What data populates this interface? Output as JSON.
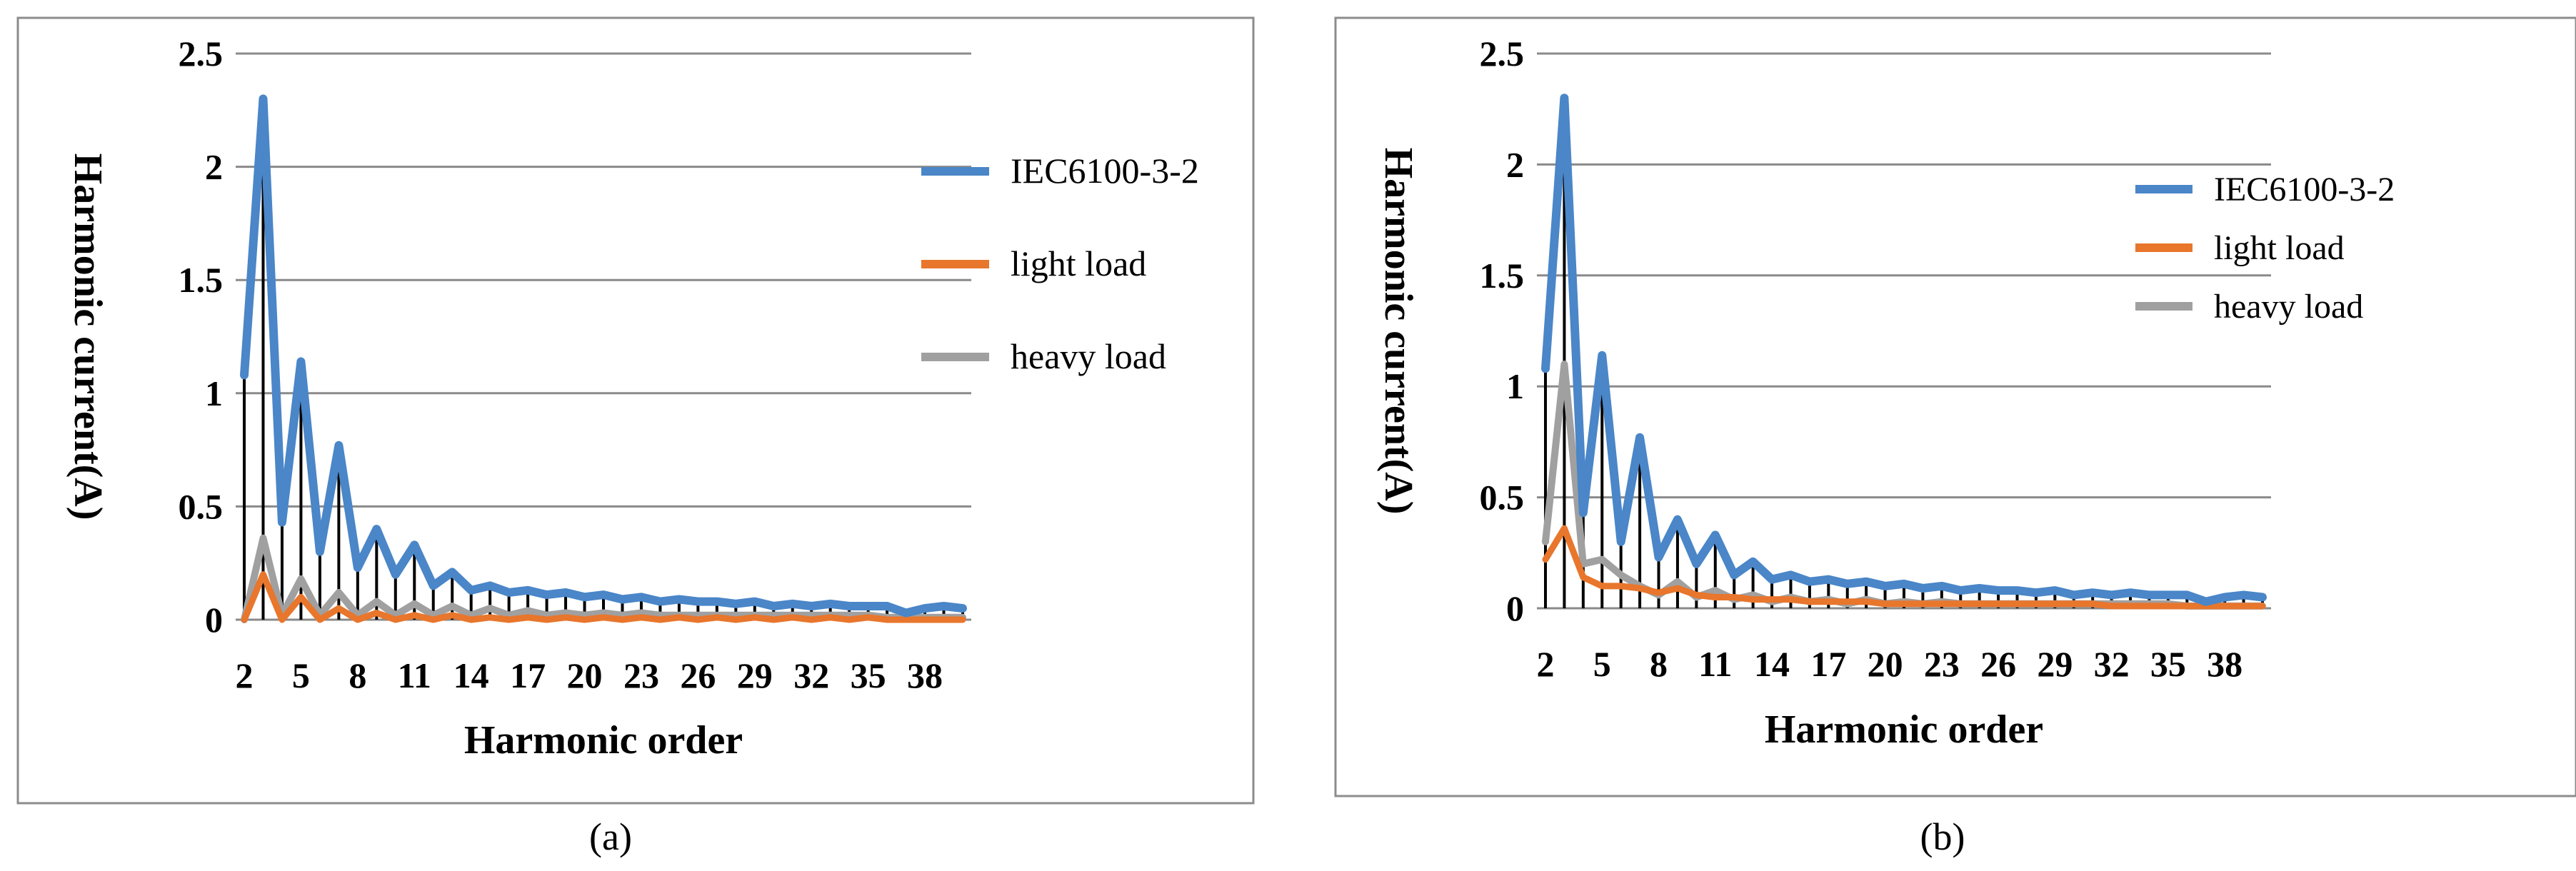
{
  "figure": {
    "panels": [
      {
        "caption": "(a)"
      },
      {
        "caption": "(b)"
      }
    ]
  },
  "chart_data": [
    {
      "type": "line",
      "panel": "a",
      "caption": "(a)",
      "title": "",
      "xlabel": "Harmonic order",
      "ylabel": "Harmonic current(A)",
      "ylim": [
        0,
        2.5
      ],
      "yticks": [
        "0",
        "0.5",
        "1",
        "1.5",
        "2",
        "2.5"
      ],
      "xticks": [
        "2",
        "5",
        "8",
        "11",
        "14",
        "17",
        "20",
        "23",
        "26",
        "29",
        "32",
        "35",
        "38"
      ],
      "x": [
        2,
        3,
        4,
        5,
        6,
        7,
        8,
        9,
        10,
        11,
        12,
        13,
        14,
        15,
        16,
        17,
        18,
        19,
        20,
        21,
        22,
        23,
        24,
        25,
        26,
        27,
        28,
        29,
        30,
        31,
        32,
        33,
        34,
        35,
        36,
        37,
        38,
        39,
        40
      ],
      "grid": true,
      "legend": "right",
      "series": [
        {
          "name": "IEC6100-3-2",
          "color": "#4a86c8",
          "values": [
            1.08,
            2.3,
            0.43,
            1.14,
            0.3,
            0.77,
            0.23,
            0.4,
            0.2,
            0.33,
            0.15,
            0.21,
            0.13,
            0.15,
            0.12,
            0.13,
            0.11,
            0.12,
            0.1,
            0.11,
            0.09,
            0.1,
            0.08,
            0.09,
            0.08,
            0.08,
            0.07,
            0.08,
            0.06,
            0.07,
            0.06,
            0.07,
            0.06,
            0.06,
            0.06,
            0.03,
            0.05,
            0.06,
            0.05
          ]
        },
        {
          "name": "light load",
          "color": "#e8762c",
          "values": [
            0.0,
            0.2,
            0.0,
            0.1,
            0.0,
            0.05,
            0.0,
            0.03,
            0.0,
            0.02,
            0.0,
            0.02,
            0.0,
            0.01,
            0.0,
            0.01,
            0.0,
            0.01,
            0.0,
            0.01,
            0.0,
            0.01,
            0.0,
            0.01,
            0.0,
            0.01,
            0.0,
            0.01,
            0.0,
            0.01,
            0.0,
            0.01,
            0.0,
            0.01,
            0.0,
            0.0,
            0.0,
            0.0,
            0.0
          ]
        },
        {
          "name": "heavy load",
          "color": "#a0a0a0",
          "values": [
            0.0,
            0.36,
            0.02,
            0.18,
            0.02,
            0.12,
            0.02,
            0.08,
            0.02,
            0.07,
            0.02,
            0.06,
            0.02,
            0.05,
            0.02,
            0.04,
            0.02,
            0.03,
            0.02,
            0.03,
            0.02,
            0.03,
            0.02,
            0.02,
            0.02,
            0.02,
            0.02,
            0.02,
            0.02,
            0.02,
            0.02,
            0.02,
            0.02,
            0.02,
            0.01,
            0.01,
            0.01,
            0.01,
            0.01
          ]
        }
      ]
    },
    {
      "type": "line",
      "panel": "b",
      "caption": "(b)",
      "title": "",
      "xlabel": "Harmonic order",
      "ylabel": "Harmonic current(A)",
      "ylim": [
        0,
        2.5
      ],
      "yticks": [
        "0",
        "0.5",
        "1",
        "1.5",
        "2",
        "2.5"
      ],
      "xticks": [
        "2",
        "5",
        "8",
        "11",
        "14",
        "17",
        "20",
        "23",
        "26",
        "29",
        "32",
        "35",
        "38"
      ],
      "x": [
        2,
        3,
        4,
        5,
        6,
        7,
        8,
        9,
        10,
        11,
        12,
        13,
        14,
        15,
        16,
        17,
        18,
        19,
        20,
        21,
        22,
        23,
        24,
        25,
        26,
        27,
        28,
        29,
        30,
        31,
        32,
        33,
        34,
        35,
        36,
        37,
        38,
        39,
        40
      ],
      "grid": true,
      "legend": "right",
      "series": [
        {
          "name": "IEC6100-3-2",
          "color": "#4a86c8",
          "values": [
            1.08,
            2.3,
            0.43,
            1.14,
            0.3,
            0.77,
            0.23,
            0.4,
            0.2,
            0.33,
            0.15,
            0.21,
            0.13,
            0.15,
            0.12,
            0.13,
            0.11,
            0.12,
            0.1,
            0.11,
            0.09,
            0.1,
            0.08,
            0.09,
            0.08,
            0.08,
            0.07,
            0.08,
            0.06,
            0.07,
            0.06,
            0.07,
            0.06,
            0.06,
            0.06,
            0.03,
            0.05,
            0.06,
            0.05
          ]
        },
        {
          "name": "light load",
          "color": "#e8762c",
          "values": [
            0.22,
            0.36,
            0.14,
            0.1,
            0.1,
            0.09,
            0.07,
            0.09,
            0.06,
            0.05,
            0.05,
            0.04,
            0.04,
            0.04,
            0.03,
            0.03,
            0.03,
            0.03,
            0.02,
            0.02,
            0.02,
            0.02,
            0.02,
            0.02,
            0.02,
            0.02,
            0.02,
            0.02,
            0.02,
            0.02,
            0.01,
            0.01,
            0.01,
            0.01,
            0.01,
            0.01,
            0.01,
            0.01,
            0.01
          ]
        },
        {
          "name": "heavy load",
          "color": "#a0a0a0",
          "values": [
            0.3,
            1.1,
            0.2,
            0.22,
            0.15,
            0.1,
            0.06,
            0.12,
            0.05,
            0.08,
            0.04,
            0.06,
            0.03,
            0.05,
            0.03,
            0.04,
            0.02,
            0.04,
            0.02,
            0.03,
            0.02,
            0.03,
            0.02,
            0.02,
            0.02,
            0.02,
            0.02,
            0.02,
            0.02,
            0.02,
            0.02,
            0.02,
            0.02,
            0.02,
            0.01,
            0.01,
            0.01,
            0.01,
            0.01
          ]
        }
      ]
    }
  ]
}
